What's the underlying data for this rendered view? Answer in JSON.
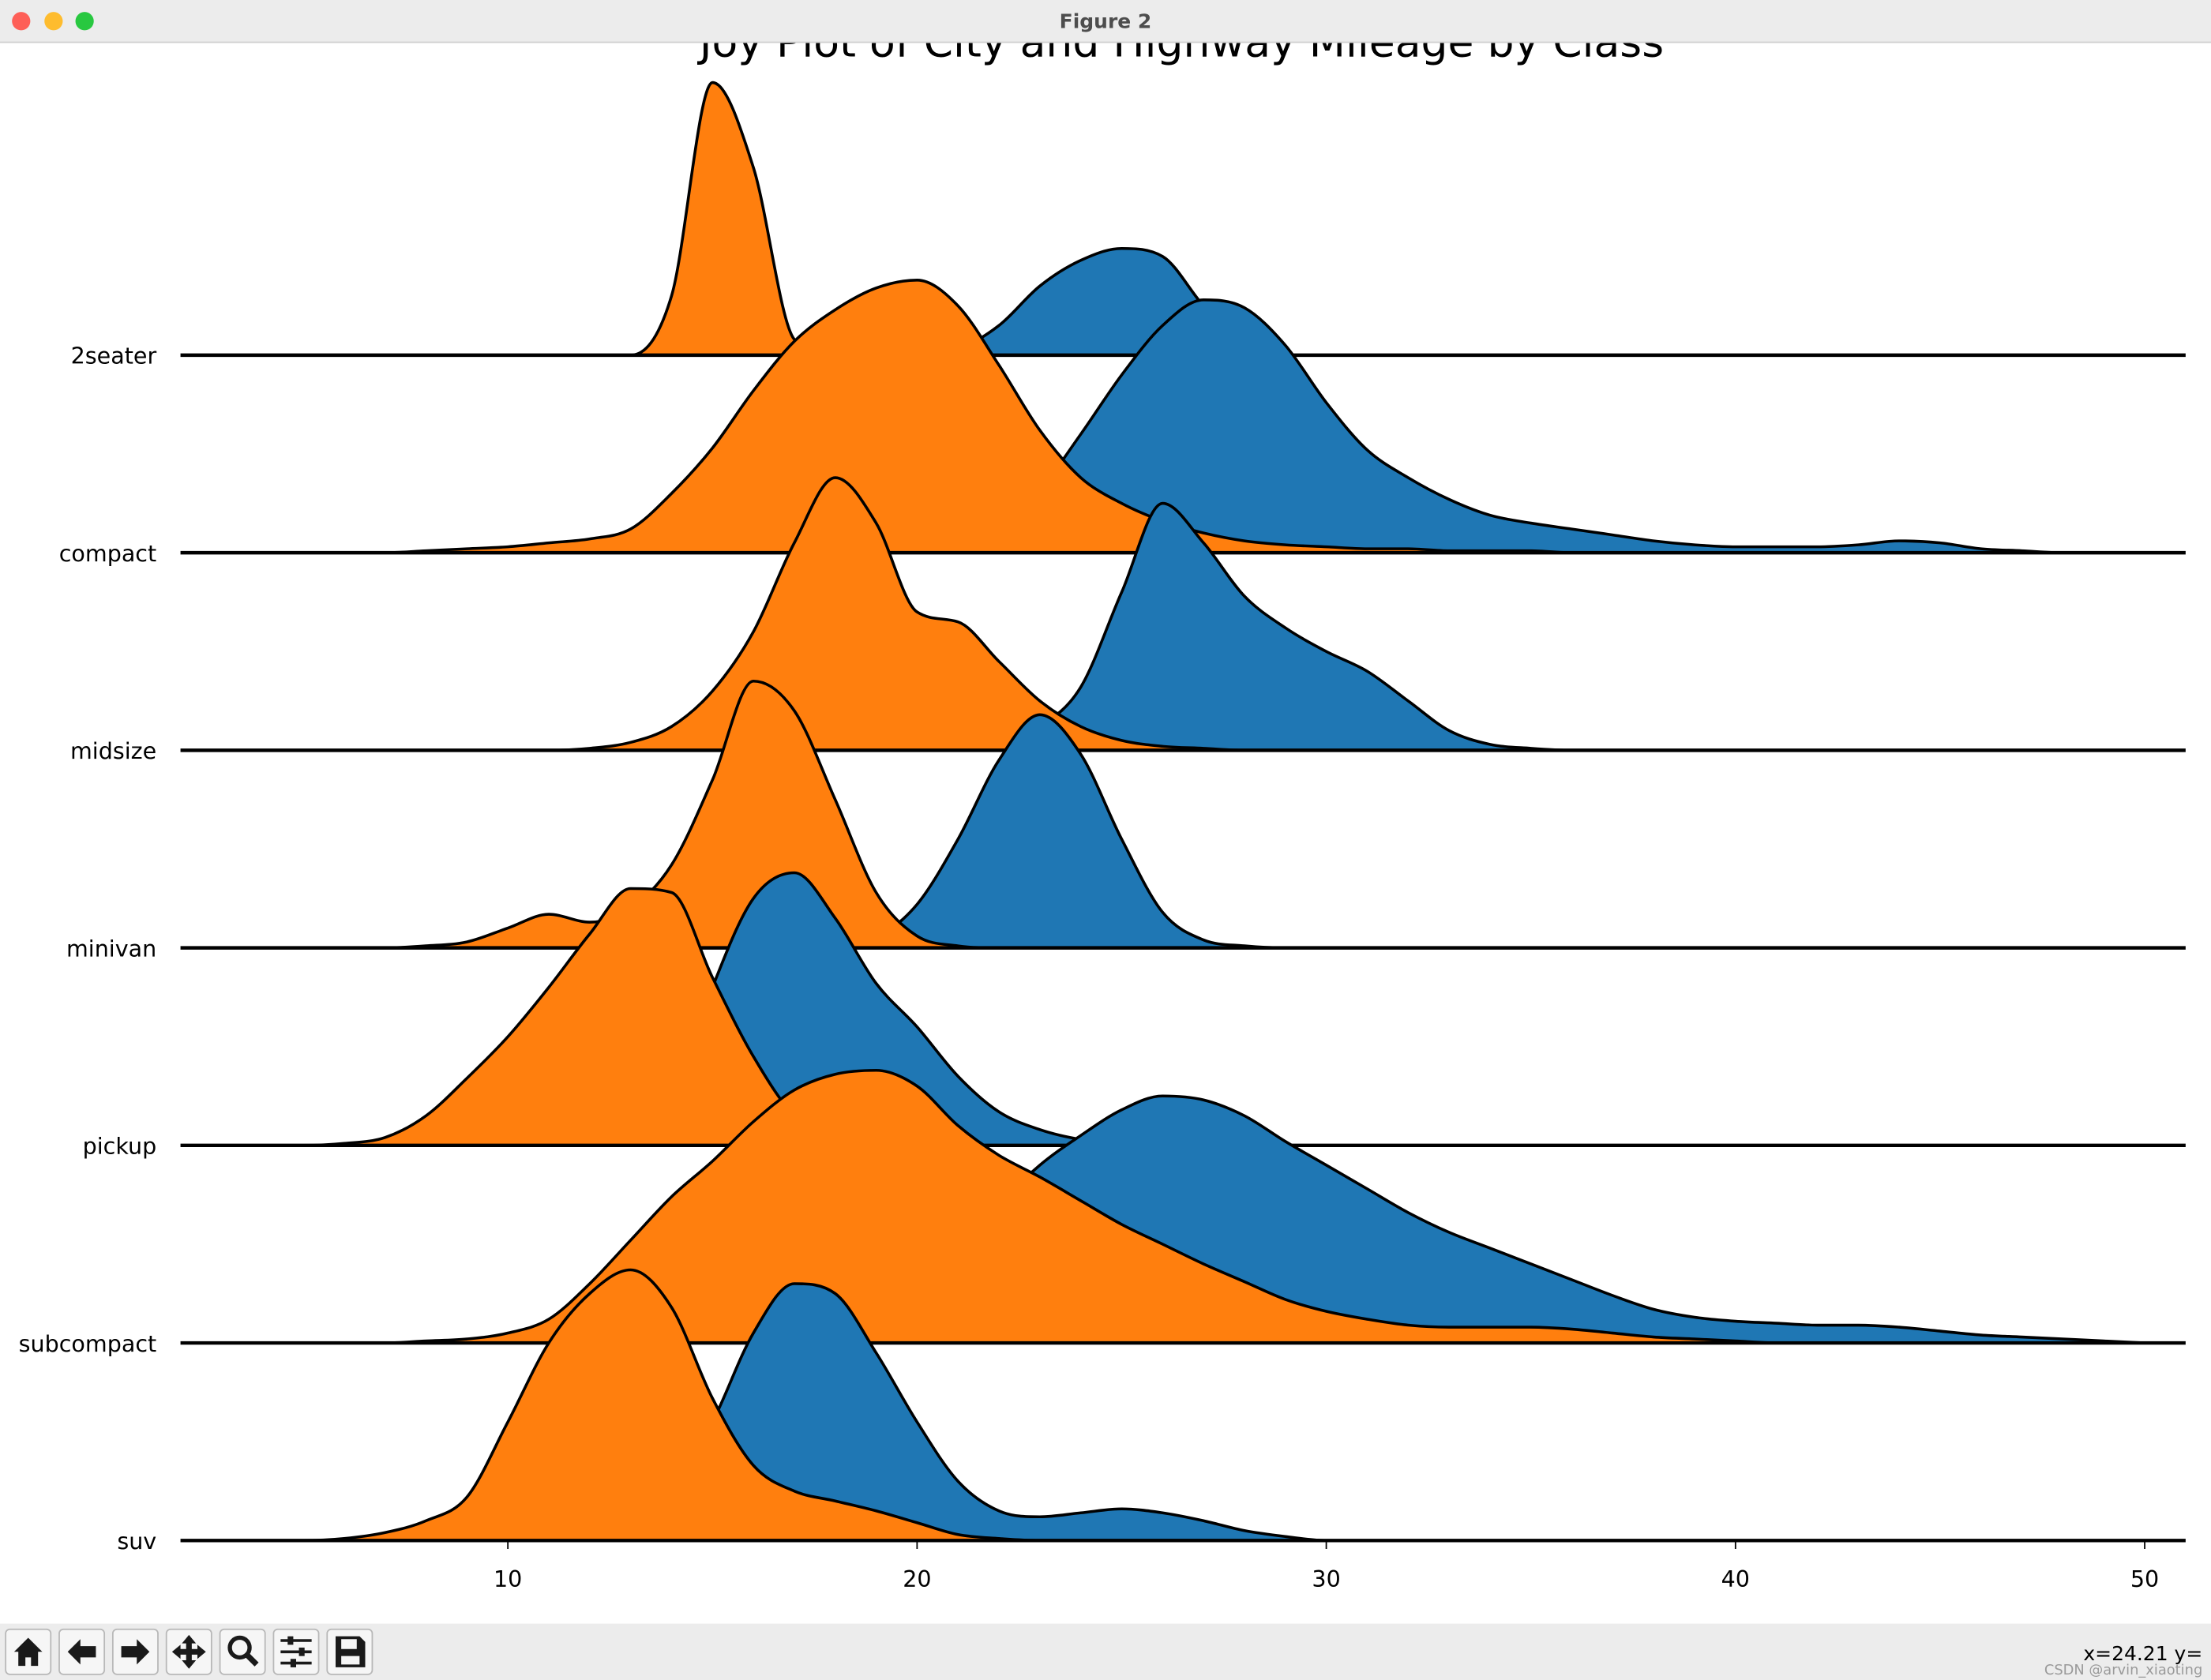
{
  "window": {
    "title": "Figure 2",
    "status": "x=24.21 y=",
    "watermark": "CSDN @arvin_xiaoting"
  },
  "chart_data": {
    "type": "ridgeline",
    "title": "Joy Plot of City and Highway Mileage by Class",
    "categories": [
      "2seater",
      "compact",
      "midsize",
      "minivan",
      "pickup",
      "subcompact",
      "suv"
    ],
    "x": [
      3,
      4,
      5,
      6,
      7,
      8,
      9,
      10,
      11,
      12,
      13,
      14,
      15,
      16,
      17,
      18,
      19,
      20,
      21,
      22,
      23,
      24,
      25,
      26,
      27,
      28,
      29,
      30,
      31,
      32,
      33,
      34,
      35,
      36,
      37,
      38,
      39,
      40,
      41,
      42,
      43,
      44,
      45,
      46,
      47,
      48,
      49,
      50
    ],
    "xlim": [
      2,
      51
    ],
    "xticks": [
      10,
      20,
      30,
      40,
      50
    ],
    "edge_color": "#000000",
    "series": [
      {
        "color": "#1f77b4",
        "values": [
          [
            0,
            0,
            0,
            0,
            0,
            0,
            0,
            0,
            0,
            0,
            0,
            0,
            0,
            0,
            0,
            0,
            0,
            0,
            0.03,
            0.15,
            0.35,
            0.48,
            0.54,
            0.5,
            0.25,
            0.05,
            0,
            0,
            0,
            0,
            0,
            0,
            0,
            0,
            0,
            0,
            0,
            0,
            0,
            0,
            0,
            0,
            0,
            0,
            0,
            0,
            0,
            0
          ],
          [
            0,
            0,
            0,
            0,
            0,
            0,
            0,
            0,
            0,
            0,
            0,
            0,
            0,
            0,
            0,
            0,
            0,
            0.01,
            0.05,
            0.15,
            0.32,
            0.6,
            0.9,
            1.15,
            1.28,
            1.24,
            1.05,
            0.76,
            0.52,
            0.38,
            0.27,
            0.19,
            0.15,
            0.12,
            0.09,
            0.06,
            0.04,
            0.03,
            0.03,
            0.03,
            0.04,
            0.06,
            0.05,
            0.02,
            0.01,
            0,
            0,
            0
          ],
          [
            0,
            0,
            0,
            0,
            0,
            0,
            0,
            0,
            0,
            0,
            0,
            0,
            0,
            0,
            0,
            0,
            0,
            0,
            0.01,
            0.04,
            0.12,
            0.32,
            0.8,
            1.25,
            1.05,
            0.78,
            0.62,
            0.5,
            0.4,
            0.25,
            0.1,
            0.03,
            0.01,
            0,
            0,
            0,
            0,
            0,
            0,
            0,
            0,
            0,
            0,
            0,
            0,
            0,
            0,
            0
          ],
          [
            0,
            0,
            0,
            0,
            0,
            0,
            0,
            0,
            0,
            0,
            0,
            0,
            0,
            0,
            0,
            0,
            0.05,
            0.22,
            0.55,
            0.95,
            1.18,
            0.98,
            0.55,
            0.18,
            0.04,
            0.01,
            0,
            0,
            0,
            0,
            0,
            0,
            0,
            0,
            0,
            0,
            0,
            0,
            0,
            0,
            0,
            0,
            0,
            0,
            0,
            0,
            0,
            0
          ],
          [
            0,
            0,
            0,
            0,
            0,
            0,
            0,
            0,
            0,
            0.01,
            0.05,
            0.2,
            0.8,
            1.25,
            1.38,
            1.15,
            0.82,
            0.6,
            0.35,
            0.17,
            0.08,
            0.03,
            0.01,
            0,
            0,
            0,
            0,
            0,
            0,
            0,
            0,
            0,
            0,
            0,
            0,
            0,
            0,
            0,
            0,
            0,
            0,
            0,
            0,
            0,
            0,
            0,
            0,
            0
          ],
          [
            0,
            0,
            0,
            0,
            0,
            0,
            0,
            0,
            0,
            0,
            0,
            0,
            0,
            0,
            0,
            0,
            0.05,
            0.2,
            0.45,
            0.7,
            0.9,
            1.05,
            1.18,
            1.25,
            1.23,
            1.15,
            1.02,
            0.9,
            0.78,
            0.66,
            0.56,
            0.48,
            0.4,
            0.32,
            0.24,
            0.17,
            0.13,
            0.11,
            0.1,
            0.09,
            0.09,
            0.08,
            0.06,
            0.04,
            0.03,
            0.02,
            0.01,
            0
          ],
          [
            0,
            0,
            0,
            0,
            0,
            0,
            0,
            0,
            0,
            0,
            0.05,
            0.25,
            0.6,
            1.05,
            1.3,
            1.25,
            0.95,
            0.6,
            0.3,
            0.15,
            0.12,
            0.14,
            0.16,
            0.14,
            0.1,
            0.05,
            0.02,
            0,
            0,
            0,
            0,
            0,
            0,
            0,
            0,
            0,
            0,
            0,
            0,
            0,
            0,
            0,
            0,
            0,
            0,
            0,
            0,
            0
          ]
        ]
      },
      {
        "color": "#ff7f0e",
        "values": [
          [
            0,
            0,
            0,
            0,
            0,
            0,
            0,
            0,
            0,
            0,
            0,
            0.3,
            1.38,
            0.95,
            0.08,
            0,
            0,
            0,
            0,
            0,
            0,
            0,
            0,
            0,
            0,
            0,
            0,
            0,
            0,
            0,
            0,
            0,
            0,
            0,
            0,
            0,
            0,
            0,
            0,
            0,
            0,
            0,
            0,
            0,
            0,
            0,
            0,
            0
          ],
          [
            0,
            0,
            0,
            0,
            0,
            0.01,
            0.02,
            0.03,
            0.05,
            0.07,
            0.12,
            0.3,
            0.53,
            0.82,
            1.07,
            1.23,
            1.34,
            1.38,
            1.25,
            0.95,
            0.62,
            0.38,
            0.25,
            0.16,
            0.1,
            0.06,
            0.04,
            0.03,
            0.02,
            0.02,
            0.01,
            0.01,
            0.01,
            0,
            0,
            0,
            0,
            0,
            0,
            0,
            0,
            0,
            0,
            0,
            0,
            0,
            0,
            0
          ],
          [
            0,
            0,
            0,
            0,
            0,
            0,
            0,
            0,
            0,
            0.01,
            0.04,
            0.12,
            0.3,
            0.6,
            1.05,
            1.38,
            1.15,
            0.7,
            0.65,
            0.45,
            0.25,
            0.12,
            0.05,
            0.02,
            0.01,
            0,
            0,
            0,
            0,
            0,
            0,
            0,
            0,
            0,
            0,
            0,
            0,
            0,
            0,
            0,
            0,
            0,
            0,
            0,
            0,
            0,
            0,
            0
          ],
          [
            0,
            0,
            0,
            0,
            0,
            0.01,
            0.03,
            0.1,
            0.17,
            0.13,
            0.2,
            0.42,
            0.85,
            1.35,
            1.2,
            0.75,
            0.28,
            0.06,
            0.01,
            0,
            0,
            0,
            0,
            0,
            0,
            0,
            0,
            0,
            0,
            0,
            0,
            0,
            0,
            0,
            0,
            0,
            0,
            0,
            0,
            0,
            0,
            0,
            0,
            0,
            0,
            0,
            0,
            0
          ],
          [
            0,
            0,
            0,
            0.01,
            0.04,
            0.15,
            0.34,
            0.55,
            0.8,
            1.07,
            1.3,
            1.28,
            0.85,
            0.45,
            0.15,
            0.03,
            0,
            0,
            0,
            0,
            0,
            0,
            0,
            0,
            0,
            0,
            0,
            0,
            0,
            0,
            0,
            0,
            0,
            0,
            0,
            0,
            0,
            0,
            0,
            0,
            0,
            0,
            0,
            0,
            0,
            0,
            0,
            0
          ],
          [
            0,
            0,
            0,
            0,
            0,
            0.01,
            0.02,
            0.05,
            0.12,
            0.3,
            0.52,
            0.74,
            0.92,
            1.12,
            1.28,
            1.36,
            1.38,
            1.3,
            1.1,
            0.95,
            0.84,
            0.72,
            0.6,
            0.5,
            0.4,
            0.31,
            0.22,
            0.16,
            0.12,
            0.09,
            0.08,
            0.08,
            0.08,
            0.07,
            0.05,
            0.03,
            0.02,
            0.01,
            0,
            0,
            0,
            0,
            0,
            0,
            0,
            0,
            0,
            0
          ],
          [
            0,
            0,
            0,
            0.01,
            0.04,
            0.1,
            0.22,
            0.6,
            1.0,
            1.25,
            1.37,
            1.18,
            0.72,
            0.38,
            0.25,
            0.2,
            0.15,
            0.09,
            0.03,
            0.01,
            0,
            0,
            0,
            0,
            0,
            0,
            0,
            0,
            0,
            0,
            0,
            0,
            0,
            0,
            0,
            0,
            0,
            0,
            0,
            0,
            0,
            0,
            0,
            0,
            0,
            0,
            0,
            0
          ]
        ]
      }
    ]
  }
}
